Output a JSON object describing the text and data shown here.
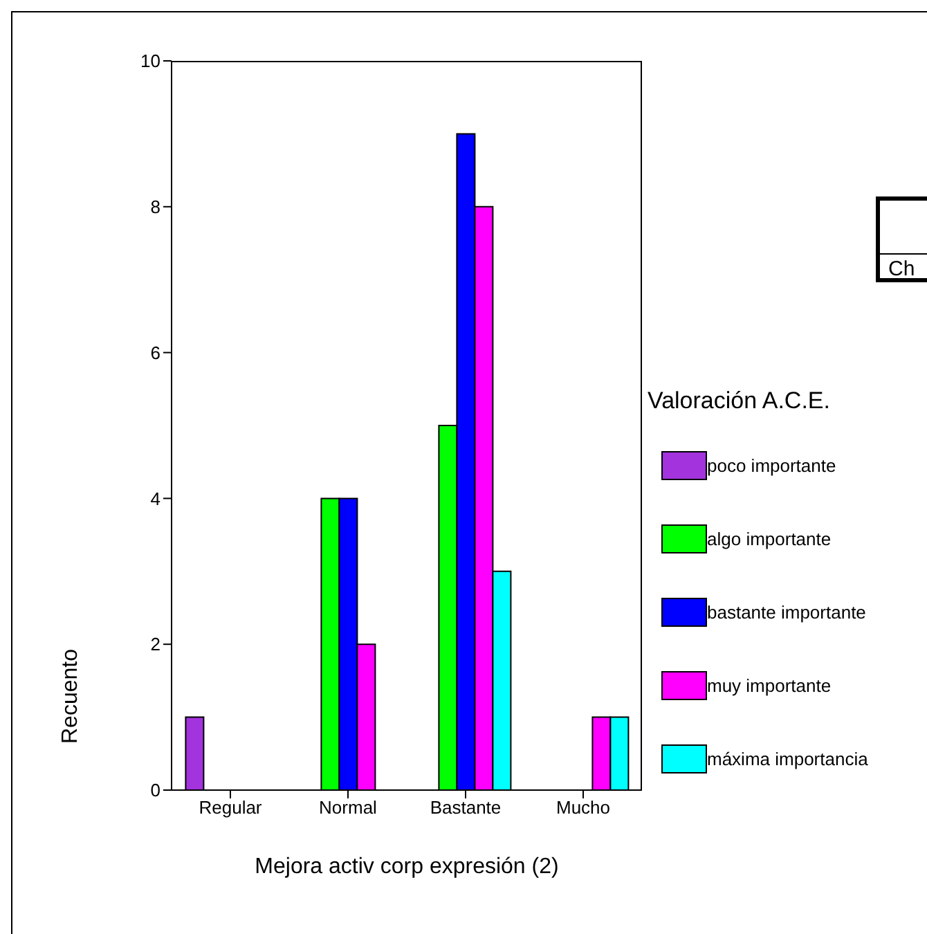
{
  "chart_data": {
    "type": "bar",
    "xlabel": "Mejora activ corp expresión (2)",
    "ylabel": "Recuento",
    "legend_title": "Valoración A.C.E.",
    "categories": [
      "Regular",
      "Normal",
      "Bastante",
      "Mucho"
    ],
    "series": [
      {
        "name": "poco importante",
        "color": "#a333dd",
        "values": [
          1,
          null,
          null,
          null
        ]
      },
      {
        "name": "algo importante",
        "color": "#00ff00",
        "values": [
          null,
          4,
          5,
          null
        ]
      },
      {
        "name": "bastante importante",
        "color": "#0000ff",
        "values": [
          null,
          4,
          9,
          null
        ]
      },
      {
        "name": "muy importante",
        "color": "#ff00ff",
        "values": [
          null,
          2,
          8,
          1
        ]
      },
      {
        "name": "máxima importancia",
        "color": "#00ffff",
        "values": [
          null,
          null,
          3,
          1
        ]
      }
    ],
    "ylim": [
      0,
      10
    ],
    "yticks": [
      0,
      2,
      4,
      6,
      8,
      10
    ],
    "grid": false,
    "legend": "right",
    "annotations": [
      "Ch"
    ]
  }
}
